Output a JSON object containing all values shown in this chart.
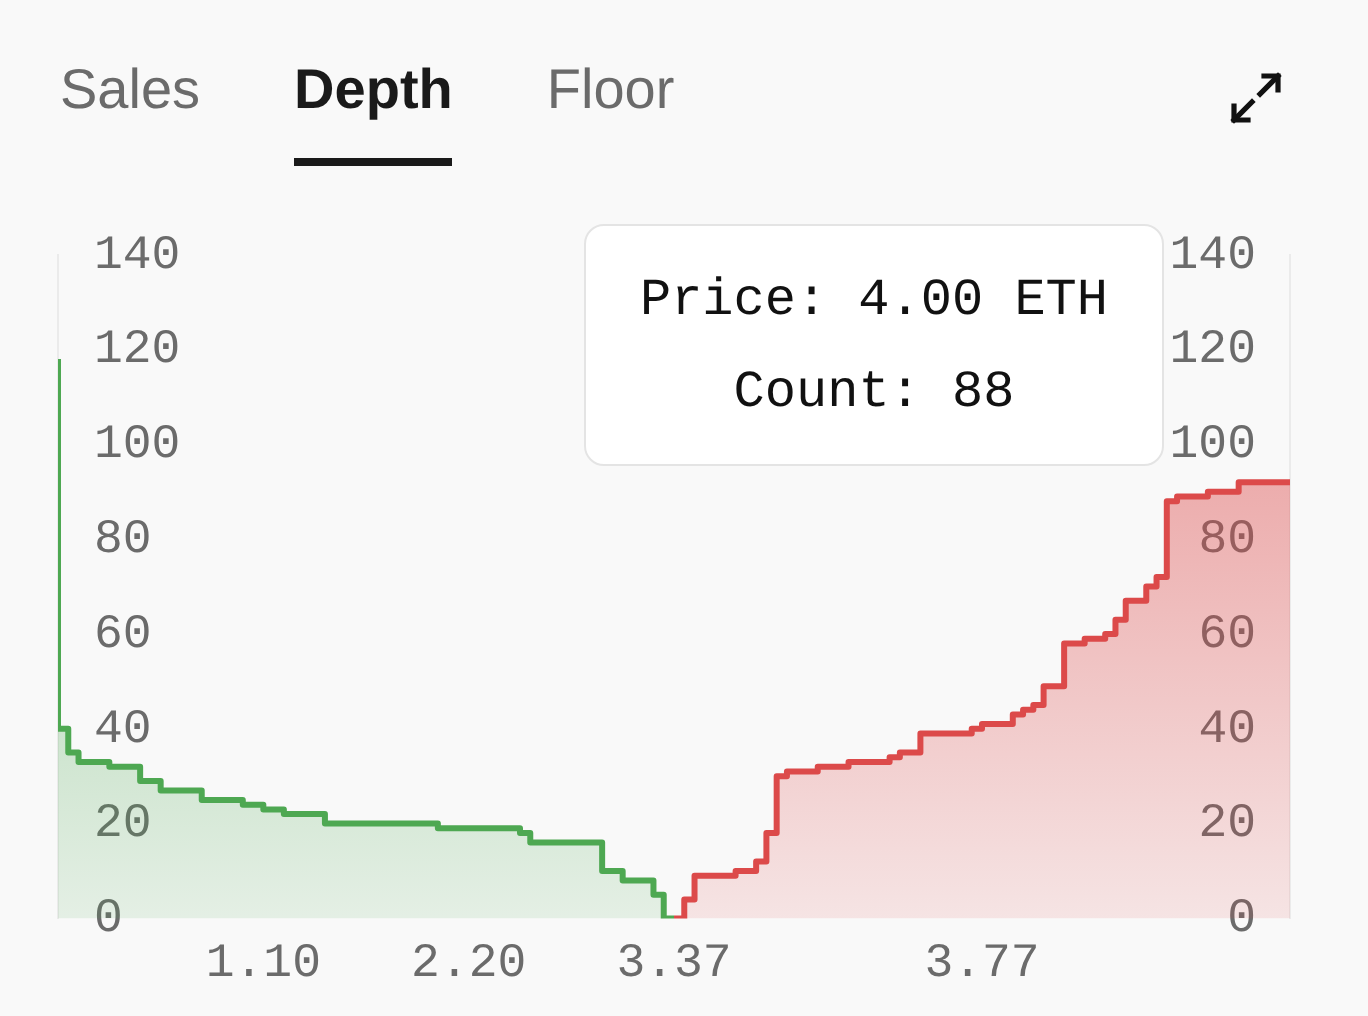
{
  "chart_data": {
    "type": "step",
    "title": "Depth",
    "annotations": [
      "Sales",
      "Floor",
      "Price: 4.00 ETH\nCount: 88"
    ],
    "categories": [
      null,
      null,
      null,
      null,
      null,
      null,
      null,
      null,
      null,
      null,
      null,
      null,
      null,
      null,
      null,
      null,
      null,
      null,
      null,
      null,
      "1.10",
      null,
      null,
      null,
      null,
      null,
      null,
      null,
      null,
      null,
      null,
      null,
      null,
      null,
      null,
      null,
      null,
      null,
      null,
      null,
      "2.20",
      null,
      null,
      null,
      null,
      null,
      null,
      null,
      null,
      null,
      null,
      null,
      null,
      null,
      null,
      null,
      null,
      null,
      null,
      null,
      "3.37",
      null,
      null,
      null,
      null,
      null,
      null,
      null,
      null,
      null,
      null,
      null,
      null,
      null,
      null,
      null,
      null,
      null,
      null,
      null,
      null,
      null,
      null,
      null,
      null,
      null,
      null,
      null,
      null,
      null,
      "3.77",
      null,
      null,
      null,
      null,
      null,
      null,
      null,
      null,
      null,
      null,
      null,
      null,
      null,
      null,
      null,
      null,
      null,
      null,
      null,
      null,
      null,
      null,
      null,
      null,
      null,
      null,
      null,
      null,
      null,
      null
    ],
    "series": [
      {
        "type": "area",
        "color": "#4ea852",
        "values": [
          118,
          40,
          35,
          33,
          33,
          33,
          32,
          32,
          32,
          29,
          29,
          27,
          27,
          27,
          27,
          25,
          25,
          25,
          25,
          24,
          24,
          23,
          23,
          22,
          22,
          22,
          22,
          20,
          20,
          20,
          20,
          20,
          20,
          20,
          20,
          20,
          20,
          20,
          19,
          19,
          19,
          19,
          19,
          19,
          19,
          19,
          18,
          16,
          16,
          16,
          16,
          16,
          16,
          16,
          10,
          10,
          8,
          8,
          8,
          5,
          0,
          null,
          null,
          null,
          null,
          null,
          null,
          null,
          null,
          null,
          null,
          null,
          null,
          null,
          null,
          null,
          null,
          null,
          null,
          null,
          null,
          null,
          null,
          null,
          null,
          null,
          null,
          null,
          null,
          null,
          null,
          null,
          null,
          null,
          null,
          null,
          null,
          null,
          null,
          null,
          null,
          null,
          null,
          null,
          null,
          null,
          null,
          null,
          null,
          null,
          null,
          null,
          null,
          null,
          null,
          null,
          null,
          null,
          null,
          null,
          null
        ]
      },
      {
        "type": "area",
        "color": "#dc4a4a",
        "values": [
          null,
          null,
          null,
          null,
          null,
          null,
          null,
          null,
          null,
          null,
          null,
          null,
          null,
          null,
          null,
          null,
          null,
          null,
          null,
          null,
          null,
          null,
          null,
          null,
          null,
          null,
          null,
          null,
          null,
          null,
          null,
          null,
          null,
          null,
          null,
          null,
          null,
          null,
          null,
          null,
          null,
          null,
          null,
          null,
          null,
          null,
          null,
          null,
          null,
          null,
          null,
          null,
          null,
          null,
          null,
          null,
          null,
          null,
          null,
          null,
          0,
          4,
          9,
          9,
          9,
          9,
          10,
          10,
          12,
          18,
          30,
          31,
          31,
          31,
          32,
          32,
          32,
          33,
          33,
          33,
          33,
          34,
          35,
          35,
          39,
          39,
          39,
          39,
          39,
          40,
          41,
          41,
          41,
          43,
          44,
          45,
          49,
          49,
          58,
          58,
          59,
          59,
          60,
          63,
          67,
          67,
          70,
          72,
          88,
          89,
          89,
          89,
          90,
          90,
          90,
          92,
          92,
          92,
          92,
          92,
          92
        ]
      }
    ],
    "ylim": [
      0,
      140
    ],
    "yticks": [
      0,
      20,
      40,
      60,
      80,
      100,
      120,
      140
    ],
    "y2lim": [
      0,
      140
    ],
    "y2ticks": [
      0,
      20,
      40,
      60,
      80,
      100,
      120,
      140
    ],
    "grid": false,
    "legend": false
  }
}
